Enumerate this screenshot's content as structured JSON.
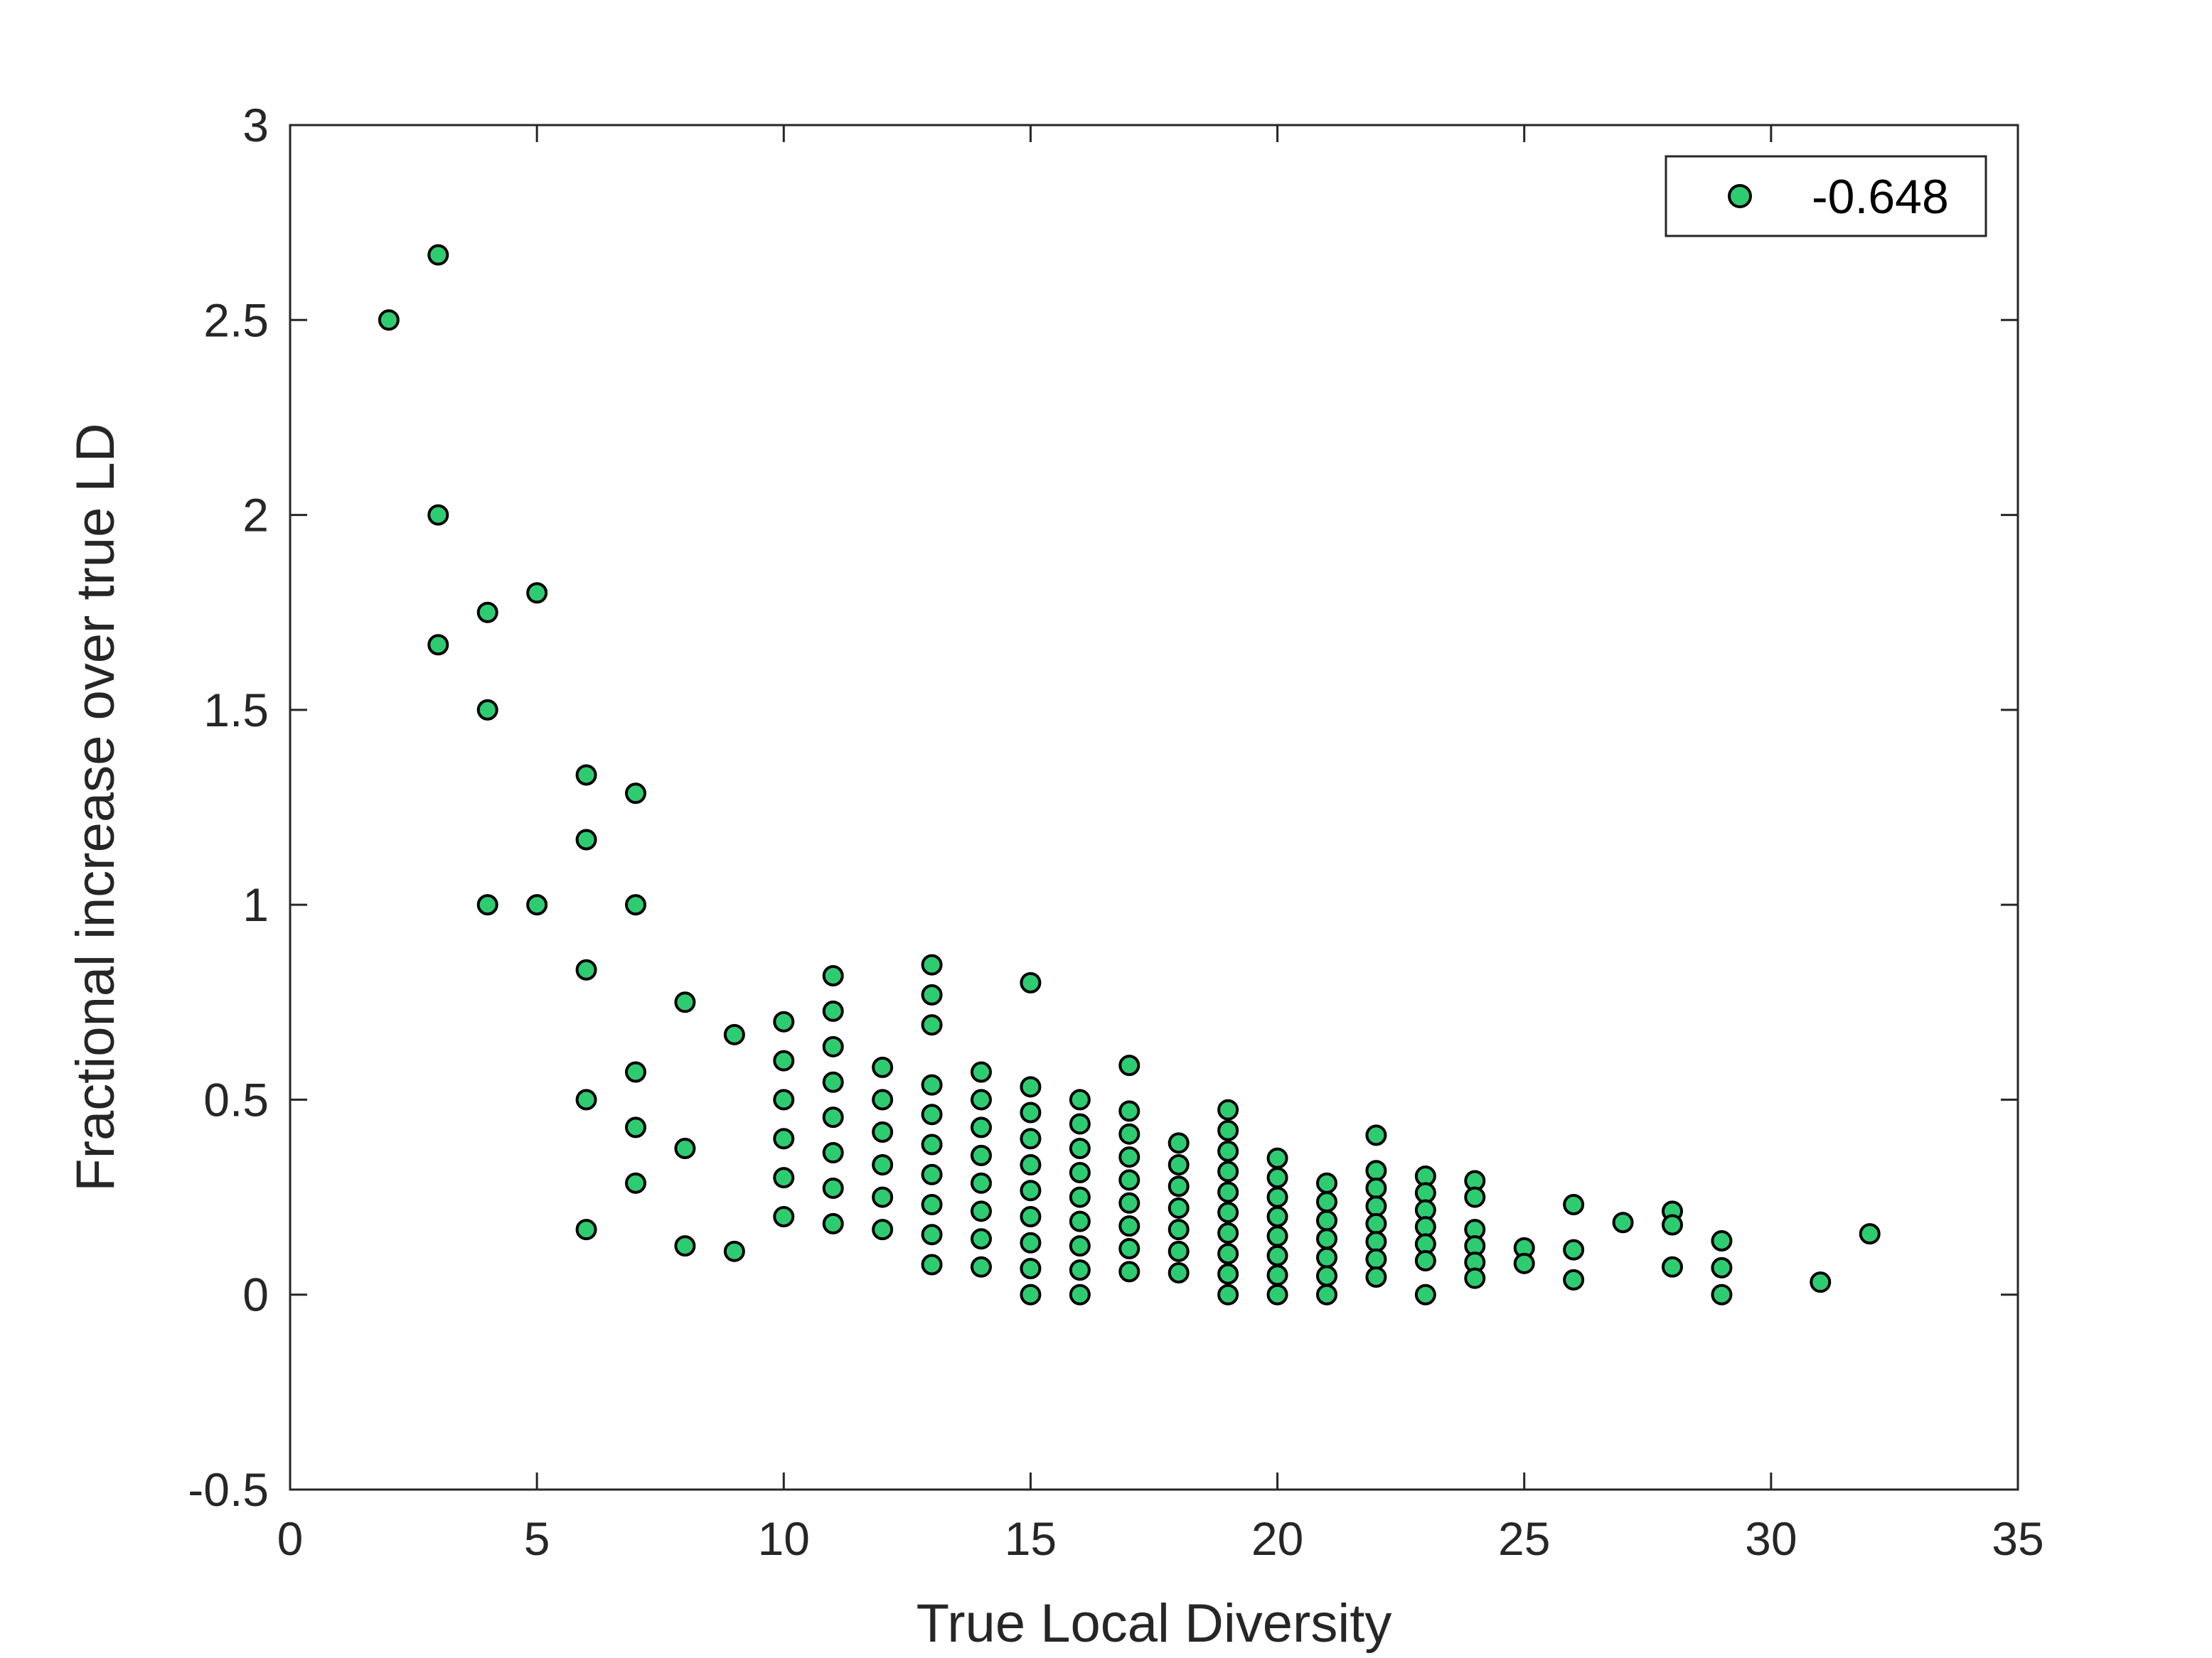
{
  "chart_data": {
    "type": "scatter",
    "title": "",
    "xlabel": "True Local Diversity",
    "ylabel": "Fractional increase over true LD",
    "xlim": [
      0,
      35
    ],
    "ylim": [
      -0.5,
      3
    ],
    "xticks": [
      0,
      5,
      10,
      15,
      20,
      25,
      30,
      35
    ],
    "yticks": [
      -0.5,
      0,
      0.5,
      1,
      1.5,
      2,
      2.5,
      3
    ],
    "xtick_labels": [
      "0",
      "5",
      "10",
      "15",
      "20",
      "25",
      "30",
      "35"
    ],
    "ytick_labels": [
      "-0.5",
      "0",
      "0.5",
      "1",
      "1.5",
      "2",
      "2.5",
      "3"
    ],
    "grid": false,
    "legend_position": "top-right",
    "marker_color": "#2ecc71",
    "marker_edge_color": "#000000",
    "series": [
      {
        "name": "-0.648",
        "points": [
          [
            2,
            2.5
          ],
          [
            3,
            2.667
          ],
          [
            3,
            2.0
          ],
          [
            3,
            1.667
          ],
          [
            4,
            1.75
          ],
          [
            4,
            1.5
          ],
          [
            4,
            1.0
          ],
          [
            5,
            1.8
          ],
          [
            5,
            1.0
          ],
          [
            6,
            1.333
          ],
          [
            6,
            1.167
          ],
          [
            6,
            0.833
          ],
          [
            6,
            0.5
          ],
          [
            6,
            0.167
          ],
          [
            7,
            1.286
          ],
          [
            7,
            1.0
          ],
          [
            7,
            0.571
          ],
          [
            7,
            0.429
          ],
          [
            7,
            0.286
          ],
          [
            8,
            0.75
          ],
          [
            8,
            0.375
          ],
          [
            8,
            0.125
          ],
          [
            9,
            0.667
          ],
          [
            9,
            0.111
          ],
          [
            10,
            0.7
          ],
          [
            10,
            0.6
          ],
          [
            10,
            0.5
          ],
          [
            10,
            0.4
          ],
          [
            10,
            0.3
          ],
          [
            10,
            0.2
          ],
          [
            11,
            0.818
          ],
          [
            11,
            0.727
          ],
          [
            11,
            0.636
          ],
          [
            11,
            0.545
          ],
          [
            11,
            0.455
          ],
          [
            11,
            0.364
          ],
          [
            11,
            0.273
          ],
          [
            11,
            0.182
          ],
          [
            12,
            0.583
          ],
          [
            12,
            0.5
          ],
          [
            12,
            0.417
          ],
          [
            12,
            0.333
          ],
          [
            12,
            0.25
          ],
          [
            12,
            0.167
          ],
          [
            13,
            0.846
          ],
          [
            13,
            0.769
          ],
          [
            13,
            0.692
          ],
          [
            13,
            0.538
          ],
          [
            13,
            0.462
          ],
          [
            13,
            0.385
          ],
          [
            13,
            0.308
          ],
          [
            13,
            0.231
          ],
          [
            13,
            0.154
          ],
          [
            13,
            0.077
          ],
          [
            14,
            0.571
          ],
          [
            14,
            0.5
          ],
          [
            14,
            0.429
          ],
          [
            14,
            0.357
          ],
          [
            14,
            0.286
          ],
          [
            14,
            0.214
          ],
          [
            14,
            0.143
          ],
          [
            14,
            0.071
          ],
          [
            15,
            0.8
          ],
          [
            15,
            0.533
          ],
          [
            15,
            0.467
          ],
          [
            15,
            0.4
          ],
          [
            15,
            0.333
          ],
          [
            15,
            0.267
          ],
          [
            15,
            0.2
          ],
          [
            15,
            0.133
          ],
          [
            15,
            0.067
          ],
          [
            15,
            0.0
          ],
          [
            16,
            0.5
          ],
          [
            16,
            0.438
          ],
          [
            16,
            0.375
          ],
          [
            16,
            0.313
          ],
          [
            16,
            0.25
          ],
          [
            16,
            0.188
          ],
          [
            16,
            0.125
          ],
          [
            16,
            0.063
          ],
          [
            16,
            0.0
          ],
          [
            17,
            0.588
          ],
          [
            17,
            0.471
          ],
          [
            17,
            0.412
          ],
          [
            17,
            0.353
          ],
          [
            17,
            0.294
          ],
          [
            17,
            0.235
          ],
          [
            17,
            0.176
          ],
          [
            17,
            0.118
          ],
          [
            17,
            0.059
          ],
          [
            18,
            0.389
          ],
          [
            18,
            0.333
          ],
          [
            18,
            0.278
          ],
          [
            18,
            0.222
          ],
          [
            18,
            0.167
          ],
          [
            18,
            0.111
          ],
          [
            18,
            0.056
          ],
          [
            19,
            0.474
          ],
          [
            19,
            0.421
          ],
          [
            19,
            0.368
          ],
          [
            19,
            0.316
          ],
          [
            19,
            0.263
          ],
          [
            19,
            0.211
          ],
          [
            19,
            0.158
          ],
          [
            19,
            0.105
          ],
          [
            19,
            0.053
          ],
          [
            19,
            0.0
          ],
          [
            20,
            0.35
          ],
          [
            20,
            0.3
          ],
          [
            20,
            0.25
          ],
          [
            20,
            0.2
          ],
          [
            20,
            0.15
          ],
          [
            20,
            0.1
          ],
          [
            20,
            0.05
          ],
          [
            20,
            0.0
          ],
          [
            21,
            0.286
          ],
          [
            21,
            0.238
          ],
          [
            21,
            0.19
          ],
          [
            21,
            0.143
          ],
          [
            21,
            0.095
          ],
          [
            21,
            0.048
          ],
          [
            21,
            0.0
          ],
          [
            22,
            0.409
          ],
          [
            22,
            0.318
          ],
          [
            22,
            0.273
          ],
          [
            22,
            0.227
          ],
          [
            22,
            0.182
          ],
          [
            22,
            0.136
          ],
          [
            22,
            0.091
          ],
          [
            22,
            0.045
          ],
          [
            23,
            0.304
          ],
          [
            23,
            0.261
          ],
          [
            23,
            0.217
          ],
          [
            23,
            0.174
          ],
          [
            23,
            0.13
          ],
          [
            23,
            0.087
          ],
          [
            23,
            0.0
          ],
          [
            24,
            0.292
          ],
          [
            24,
            0.25
          ],
          [
            24,
            0.167
          ],
          [
            24,
            0.125
          ],
          [
            24,
            0.083
          ],
          [
            24,
            0.042
          ],
          [
            25,
            0.12
          ],
          [
            25,
            0.08
          ],
          [
            26,
            0.231
          ],
          [
            26,
            0.115
          ],
          [
            26,
            0.038
          ],
          [
            27,
            0.185
          ],
          [
            28,
            0.214
          ],
          [
            28,
            0.179
          ],
          [
            28,
            0.071
          ],
          [
            29,
            0.138
          ],
          [
            29,
            0.069
          ],
          [
            29,
            0.0
          ],
          [
            31,
            0.032
          ],
          [
            32,
            0.156
          ]
        ]
      }
    ]
  }
}
